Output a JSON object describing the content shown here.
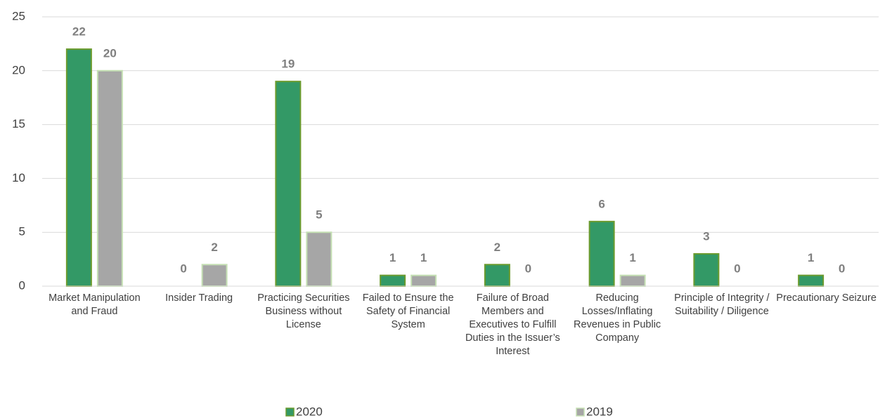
{
  "chart_data": {
    "type": "bar",
    "categories": [
      "Market Manipulation and Fraud",
      "Insider Trading",
      "Practicing Securities Business without License",
      "Failed to Ensure the Safety of Financial System",
      "Failure of Broad Members and Executives to Fulfill Duties in the Issuer’s Interest",
      "Reducing Losses/Inflating Revenues in Public Company",
      "Principle of Integrity / Suitability / Diligence",
      "Precautionary Seizure"
    ],
    "series": [
      {
        "name": "2020",
        "color": "#339966",
        "values": [
          22,
          0,
          19,
          1,
          2,
          6,
          3,
          1
        ]
      },
      {
        "name": "2019",
        "color": "#a6a6a6",
        "values": [
          20,
          2,
          5,
          1,
          0,
          1,
          0,
          0
        ]
      }
    ],
    "ylim": [
      0,
      25
    ],
    "yticks": [
      0,
      5,
      10,
      15,
      20,
      25
    ],
    "grid": true,
    "legend": "bottom"
  }
}
